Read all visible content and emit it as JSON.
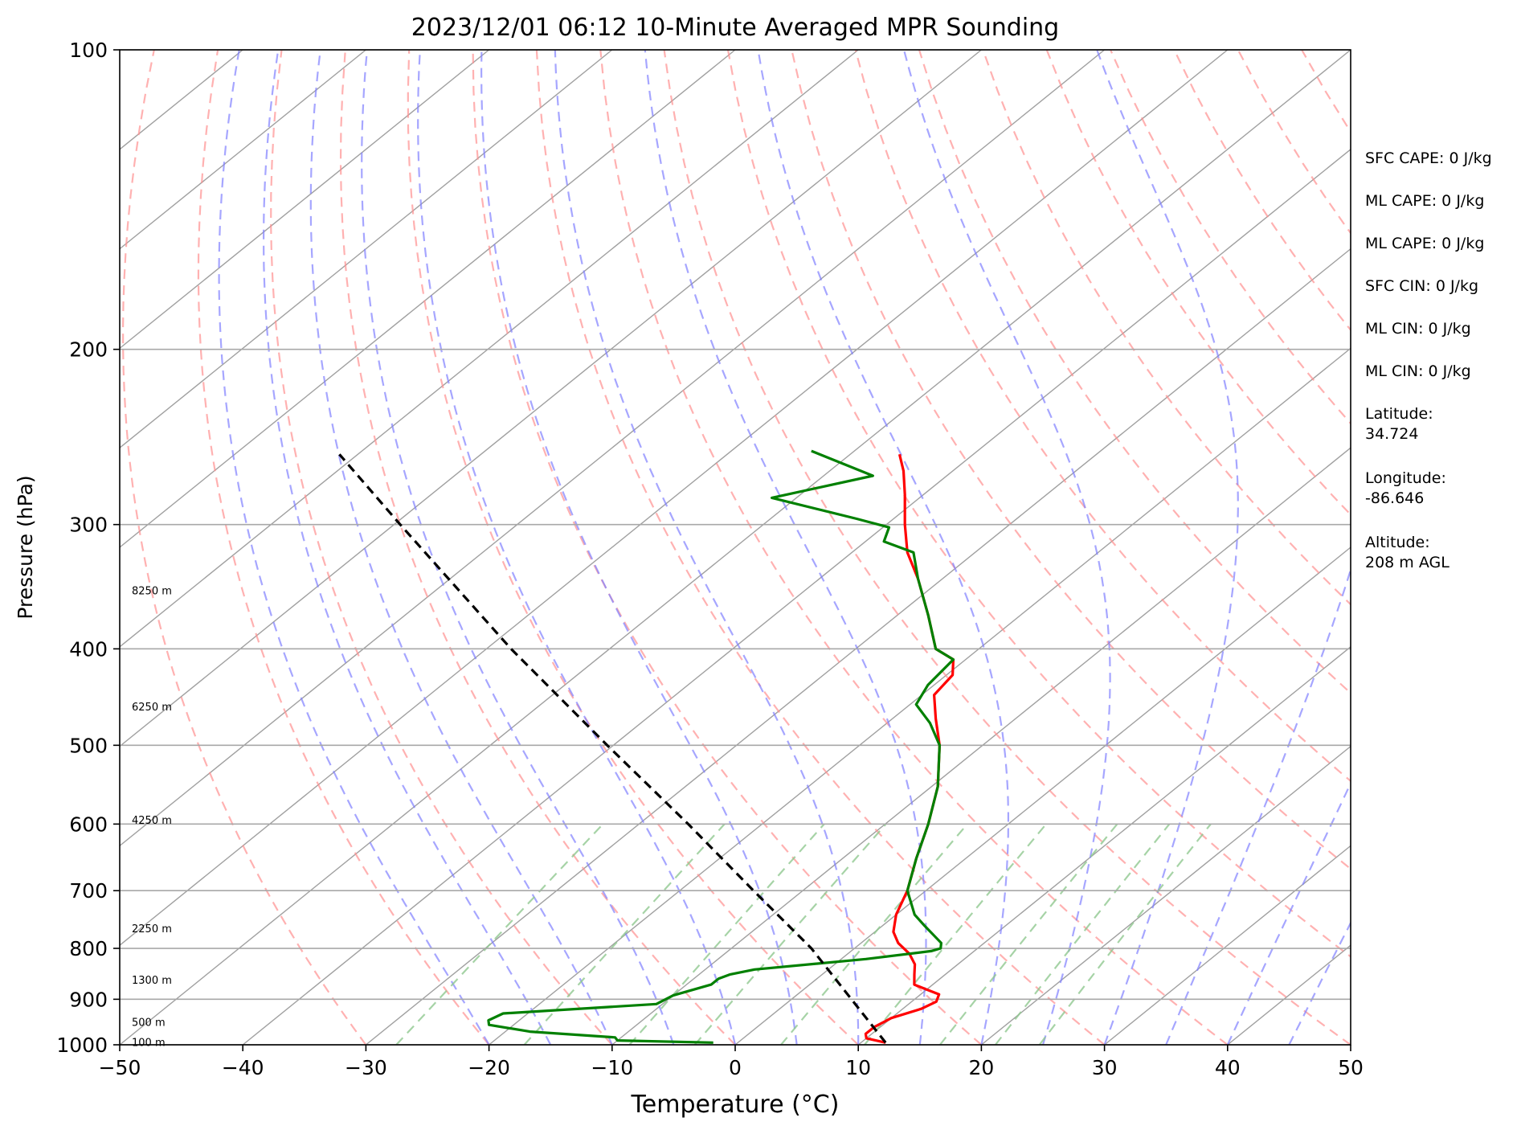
{
  "chart_data": {
    "type": "line",
    "title": "2023/12/01 06:12 10-Minute Averaged MPR Sounding",
    "xlabel": "Temperature (°C)",
    "ylabel": "Pressure (hPa)",
    "xlim": [
      -50,
      50
    ],
    "ylim": [
      1000,
      100
    ],
    "y_scale": "log",
    "grid": true,
    "x_ticks": [
      "−50",
      "−40",
      "−30",
      "−20",
      "−10",
      "0",
      "10",
      "20",
      "30",
      "40",
      "50"
    ],
    "y_ticks": [
      "100",
      "200",
      "300",
      "400",
      "500",
      "600",
      "700",
      "800",
      "900",
      "1000"
    ],
    "height_labels": [
      {
        "text": "100 m",
        "p": 995
      },
      {
        "text": "500 m",
        "p": 950
      },
      {
        "text": "1300 m",
        "p": 862
      },
      {
        "text": "2250 m",
        "p": 765
      },
      {
        "text": "4250 m",
        "p": 595
      },
      {
        "text": "6250 m",
        "p": 458
      },
      {
        "text": "8250 m",
        "p": 350
      }
    ],
    "series": [
      {
        "role": "temperature",
        "color": "#ff0000",
        "points": [
          {
            "p": 995,
            "t": 12.0
          },
          {
            "p": 985,
            "t": 10.0
          },
          {
            "p": 975,
            "t": 9.5
          },
          {
            "p": 960,
            "t": 9.5
          },
          {
            "p": 940,
            "t": 10.0
          },
          {
            "p": 920,
            "t": 11.5
          },
          {
            "p": 905,
            "t": 12.0
          },
          {
            "p": 890,
            "t": 11.5
          },
          {
            "p": 880,
            "t": 10.0
          },
          {
            "p": 870,
            "t": 8.5
          },
          {
            "p": 850,
            "t": 7.5
          },
          {
            "p": 830,
            "t": 6.5
          },
          {
            "p": 810,
            "t": 5.0
          },
          {
            "p": 790,
            "t": 3.0
          },
          {
            "p": 770,
            "t": 1.5
          },
          {
            "p": 740,
            "t": 0.0
          },
          {
            "p": 700,
            "t": -1.5
          },
          {
            "p": 650,
            "t": -4.0
          },
          {
            "p": 600,
            "t": -6.5
          },
          {
            "p": 550,
            "t": -9.5
          },
          {
            "p": 500,
            "t": -13.5
          },
          {
            "p": 470,
            "t": -16.5
          },
          {
            "p": 445,
            "t": -19.0
          },
          {
            "p": 425,
            "t": -19.5
          },
          {
            "p": 410,
            "t": -21.0
          },
          {
            "p": 400,
            "t": -23.5
          },
          {
            "p": 370,
            "t": -27.5
          },
          {
            "p": 340,
            "t": -32.0
          },
          {
            "p": 320,
            "t": -35.5
          },
          {
            "p": 300,
            "t": -38.5
          },
          {
            "p": 280,
            "t": -41.5
          },
          {
            "p": 265,
            "t": -44.0
          },
          {
            "p": 255,
            "t": -46.0
          }
        ]
      },
      {
        "role": "dewpoint",
        "color": "#008000",
        "points": [
          {
            "p": 995,
            "t": -2.0
          },
          {
            "p": 990,
            "t": -10.0
          },
          {
            "p": 983,
            "t": -10.5
          },
          {
            "p": 970,
            "t": -18.0
          },
          {
            "p": 955,
            "t": -22.0
          },
          {
            "p": 945,
            "t": -22.5
          },
          {
            "p": 930,
            "t": -22.0
          },
          {
            "p": 910,
            "t": -10.5
          },
          {
            "p": 892,
            "t": -10.0
          },
          {
            "p": 870,
            "t": -8.0
          },
          {
            "p": 858,
            "t": -8.0
          },
          {
            "p": 850,
            "t": -7.5
          },
          {
            "p": 840,
            "t": -6.0
          },
          {
            "p": 820,
            "t": 2.0
          },
          {
            "p": 805,
            "t": 6.5
          },
          {
            "p": 800,
            "t": 7.0
          },
          {
            "p": 790,
            "t": 6.5
          },
          {
            "p": 760,
            "t": 3.5
          },
          {
            "p": 740,
            "t": 1.5
          },
          {
            "p": 700,
            "t": -1.5
          },
          {
            "p": 650,
            "t": -4.0
          },
          {
            "p": 600,
            "t": -6.5
          },
          {
            "p": 550,
            "t": -9.5
          },
          {
            "p": 500,
            "t": -13.5
          },
          {
            "p": 475,
            "t": -16.5
          },
          {
            "p": 455,
            "t": -19.5
          },
          {
            "p": 435,
            "t": -20.5
          },
          {
            "p": 410,
            "t": -21.0
          },
          {
            "p": 400,
            "t": -23.5
          },
          {
            "p": 370,
            "t": -27.5
          },
          {
            "p": 340,
            "t": -32.0
          },
          {
            "p": 320,
            "t": -35.0
          },
          {
            "p": 312,
            "t": -38.5
          },
          {
            "p": 302,
            "t": -39.5
          },
          {
            "p": 296,
            "t": -43.0
          },
          {
            "p": 282,
            "t": -52.0
          },
          {
            "p": 268,
            "t": -46.0
          },
          {
            "p": 253,
            "t": -53.5
          }
        ]
      },
      {
        "role": "parcel",
        "color": "#000000",
        "points": [
          {
            "p": 995,
            "t": 12.0
          },
          {
            "p": 800,
            "t": -3.5
          },
          {
            "p": 700,
            "t": -14.0
          },
          {
            "p": 600,
            "t": -26.0
          },
          {
            "p": 500,
            "t": -40.5
          },
          {
            "p": 400,
            "t": -58.0
          },
          {
            "p": 300,
            "t": -79.5
          },
          {
            "p": 255,
            "t": -91.5
          }
        ]
      }
    ]
  },
  "side_info": {
    "sfc_cape": "SFC CAPE: 0 J/kg",
    "ml_cape_1": "ML CAPE: 0 J/kg",
    "ml_cape_2": "ML CAPE: 0 J/kg",
    "sfc_cin": "SFC CIN: 0 J/kg",
    "ml_cin_1": "ML CIN: 0 J/kg",
    "ml_cin_2": "ML CIN: 0 J/kg",
    "latitude": "Latitude:\n34.724",
    "longitude": "Longitude:\n-86.646",
    "altitude": "Altitude:\n208 m AGL"
  },
  "colors": {
    "isotherm": "#a0a0a0",
    "dry_adiabat": "#ff9090",
    "moist_adiabat": "#8080ff",
    "mixing_ratio": "#90c890"
  }
}
